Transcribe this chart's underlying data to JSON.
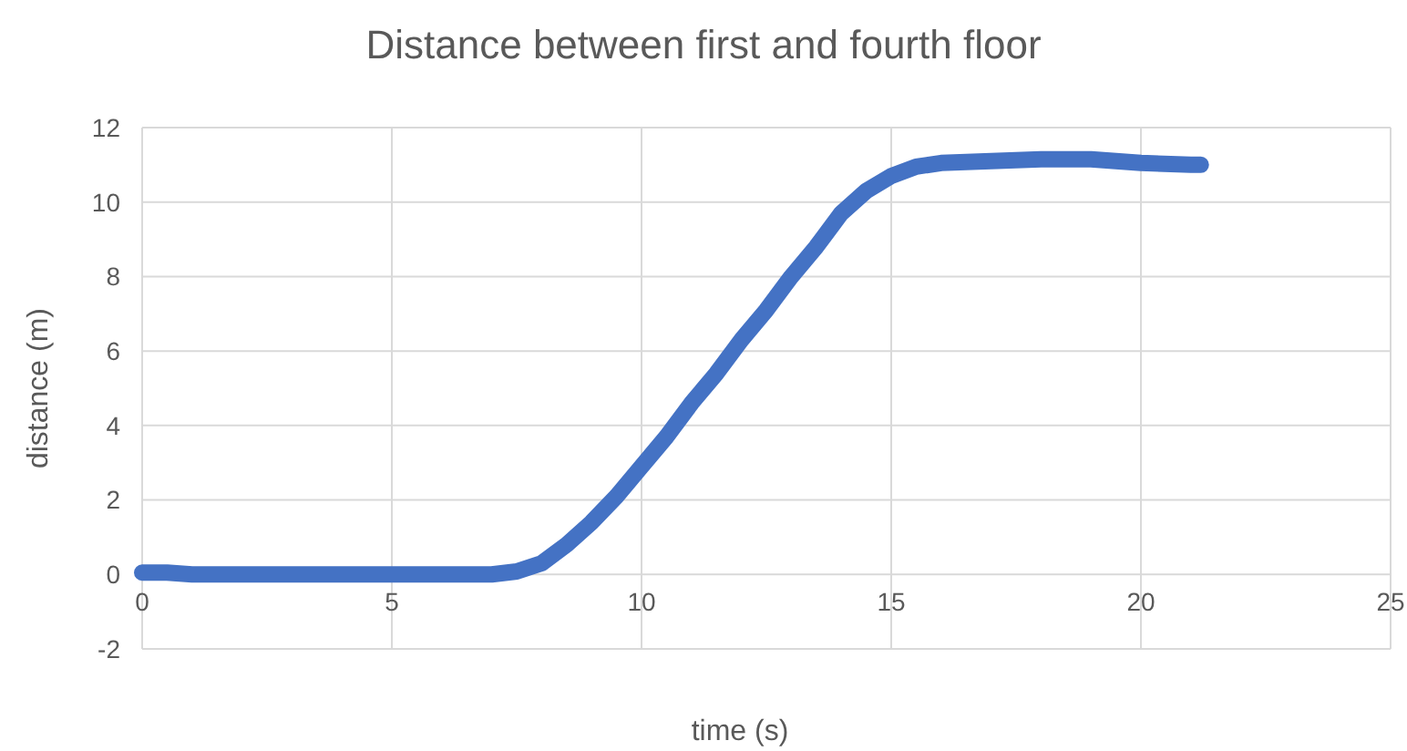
{
  "chart_data": {
    "type": "line",
    "title": "Distance between first and fourth floor",
    "xlabel": "time (s)",
    "ylabel": "distance (m)",
    "series": [
      {
        "color": "#4472c4",
        "x": [
          0,
          0.5,
          1,
          2,
          3,
          4,
          5,
          6,
          7,
          7.5,
          8,
          8.5,
          9,
          9.5,
          10,
          10.5,
          11,
          11.5,
          12,
          12.5,
          13,
          13.5,
          14,
          14.5,
          15,
          15.5,
          16,
          17,
          18,
          19,
          20,
          21,
          21.2
        ],
        "values": [
          0.05,
          0.05,
          0,
          0,
          0,
          0,
          0,
          0,
          0,
          0.08,
          0.3,
          0.8,
          1.4,
          2.1,
          2.9,
          3.7,
          4.6,
          5.4,
          6.3,
          7.1,
          8,
          8.8,
          9.7,
          10.3,
          10.7,
          10.95,
          11.05,
          11.1,
          11.15,
          11.15,
          11.05,
          11,
          11
        ]
      }
    ],
    "xlim": [
      0,
      25
    ],
    "xticks": [
      0,
      5,
      10,
      15,
      20,
      25
    ],
    "ylim": [
      -2,
      12
    ],
    "yticks": [
      -2,
      0,
      2,
      4,
      6,
      8,
      10,
      12
    ],
    "grid": true,
    "marker": "none",
    "line_style": "solid"
  }
}
